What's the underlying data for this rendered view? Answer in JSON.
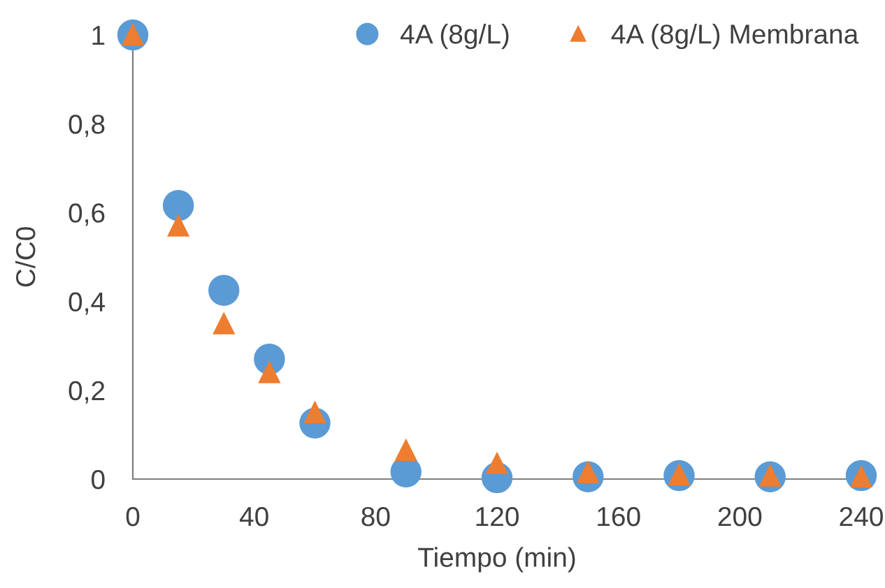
{
  "chart_data": {
    "type": "scatter",
    "xlabel": "Tiempo (min)",
    "ylabel": "C/C0",
    "x": [
      0,
      15,
      30,
      45,
      60,
      90,
      120,
      150,
      180,
      210,
      240
    ],
    "series": [
      {
        "name": "4A (8g/L)",
        "color": "#5b9bd5",
        "marker": "circle",
        "values": [
          1,
          0.616,
          0.425,
          0.27,
          0.126,
          0.016,
          0.003,
          0.005,
          0.008,
          0.005,
          0.008
        ]
      },
      {
        "name": "4A (8g/L) Membrana",
        "color": "#ed7d31",
        "marker": "triangle",
        "values": [
          1,
          0.57,
          0.35,
          0.24,
          0.15,
          0.065,
          0.035,
          0.015,
          0.01,
          0.007,
          0.005
        ]
      }
    ],
    "xlim": [
      0,
      240
    ],
    "xticks": [
      0,
      40,
      80,
      120,
      160,
      200,
      240
    ],
    "ylim": [
      0,
      1
    ],
    "yticks": [
      {
        "value": 0,
        "label": "0"
      },
      {
        "value": 0.2,
        "label": "0,2"
      },
      {
        "value": 0.4,
        "label": "0,4"
      },
      {
        "value": 0.6,
        "label": "0,6"
      },
      {
        "value": 0.8,
        "label": "0,8"
      },
      {
        "value": 1,
        "label": "1"
      }
    ],
    "grid": false,
    "legend": "top right"
  }
}
